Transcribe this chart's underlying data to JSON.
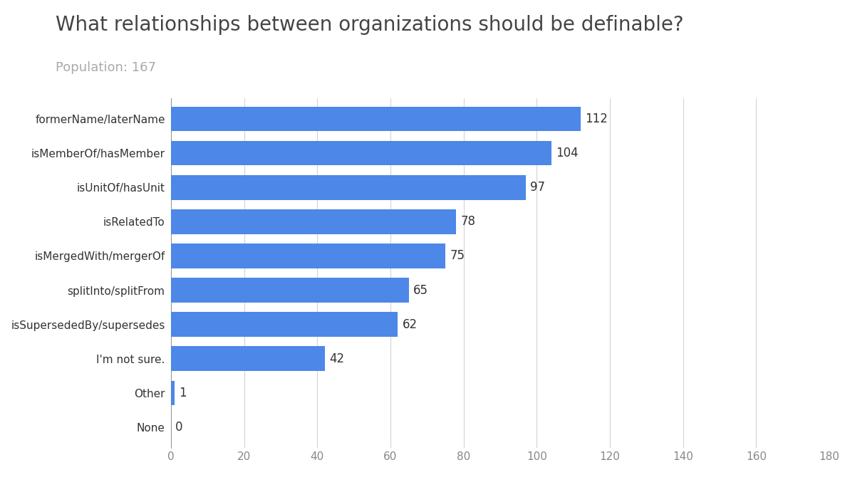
{
  "title": "What relationships between organizations should be definable?",
  "subtitle": "Population: 167",
  "categories": [
    "formerName/laterName",
    "isMemberOf/hasMember",
    "isUnitOf/hasUnit",
    "isRelatedTo",
    "isMergedWith/mergerOf",
    "splitInto/splitFrom",
    "isSupersededBy/supersedes",
    "I'm not sure.",
    "Other",
    "None"
  ],
  "values": [
    112,
    104,
    97,
    78,
    75,
    65,
    62,
    42,
    1,
    0
  ],
  "bar_color": "#4d87e8",
  "xlim": [
    0,
    180
  ],
  "xticks": [
    0,
    20,
    40,
    60,
    80,
    100,
    120,
    140,
    160,
    180
  ],
  "background_color": "#ffffff",
  "grid_color": "#d3d3d3",
  "title_fontsize": 20,
  "subtitle_fontsize": 13,
  "label_fontsize": 11,
  "value_fontsize": 12
}
